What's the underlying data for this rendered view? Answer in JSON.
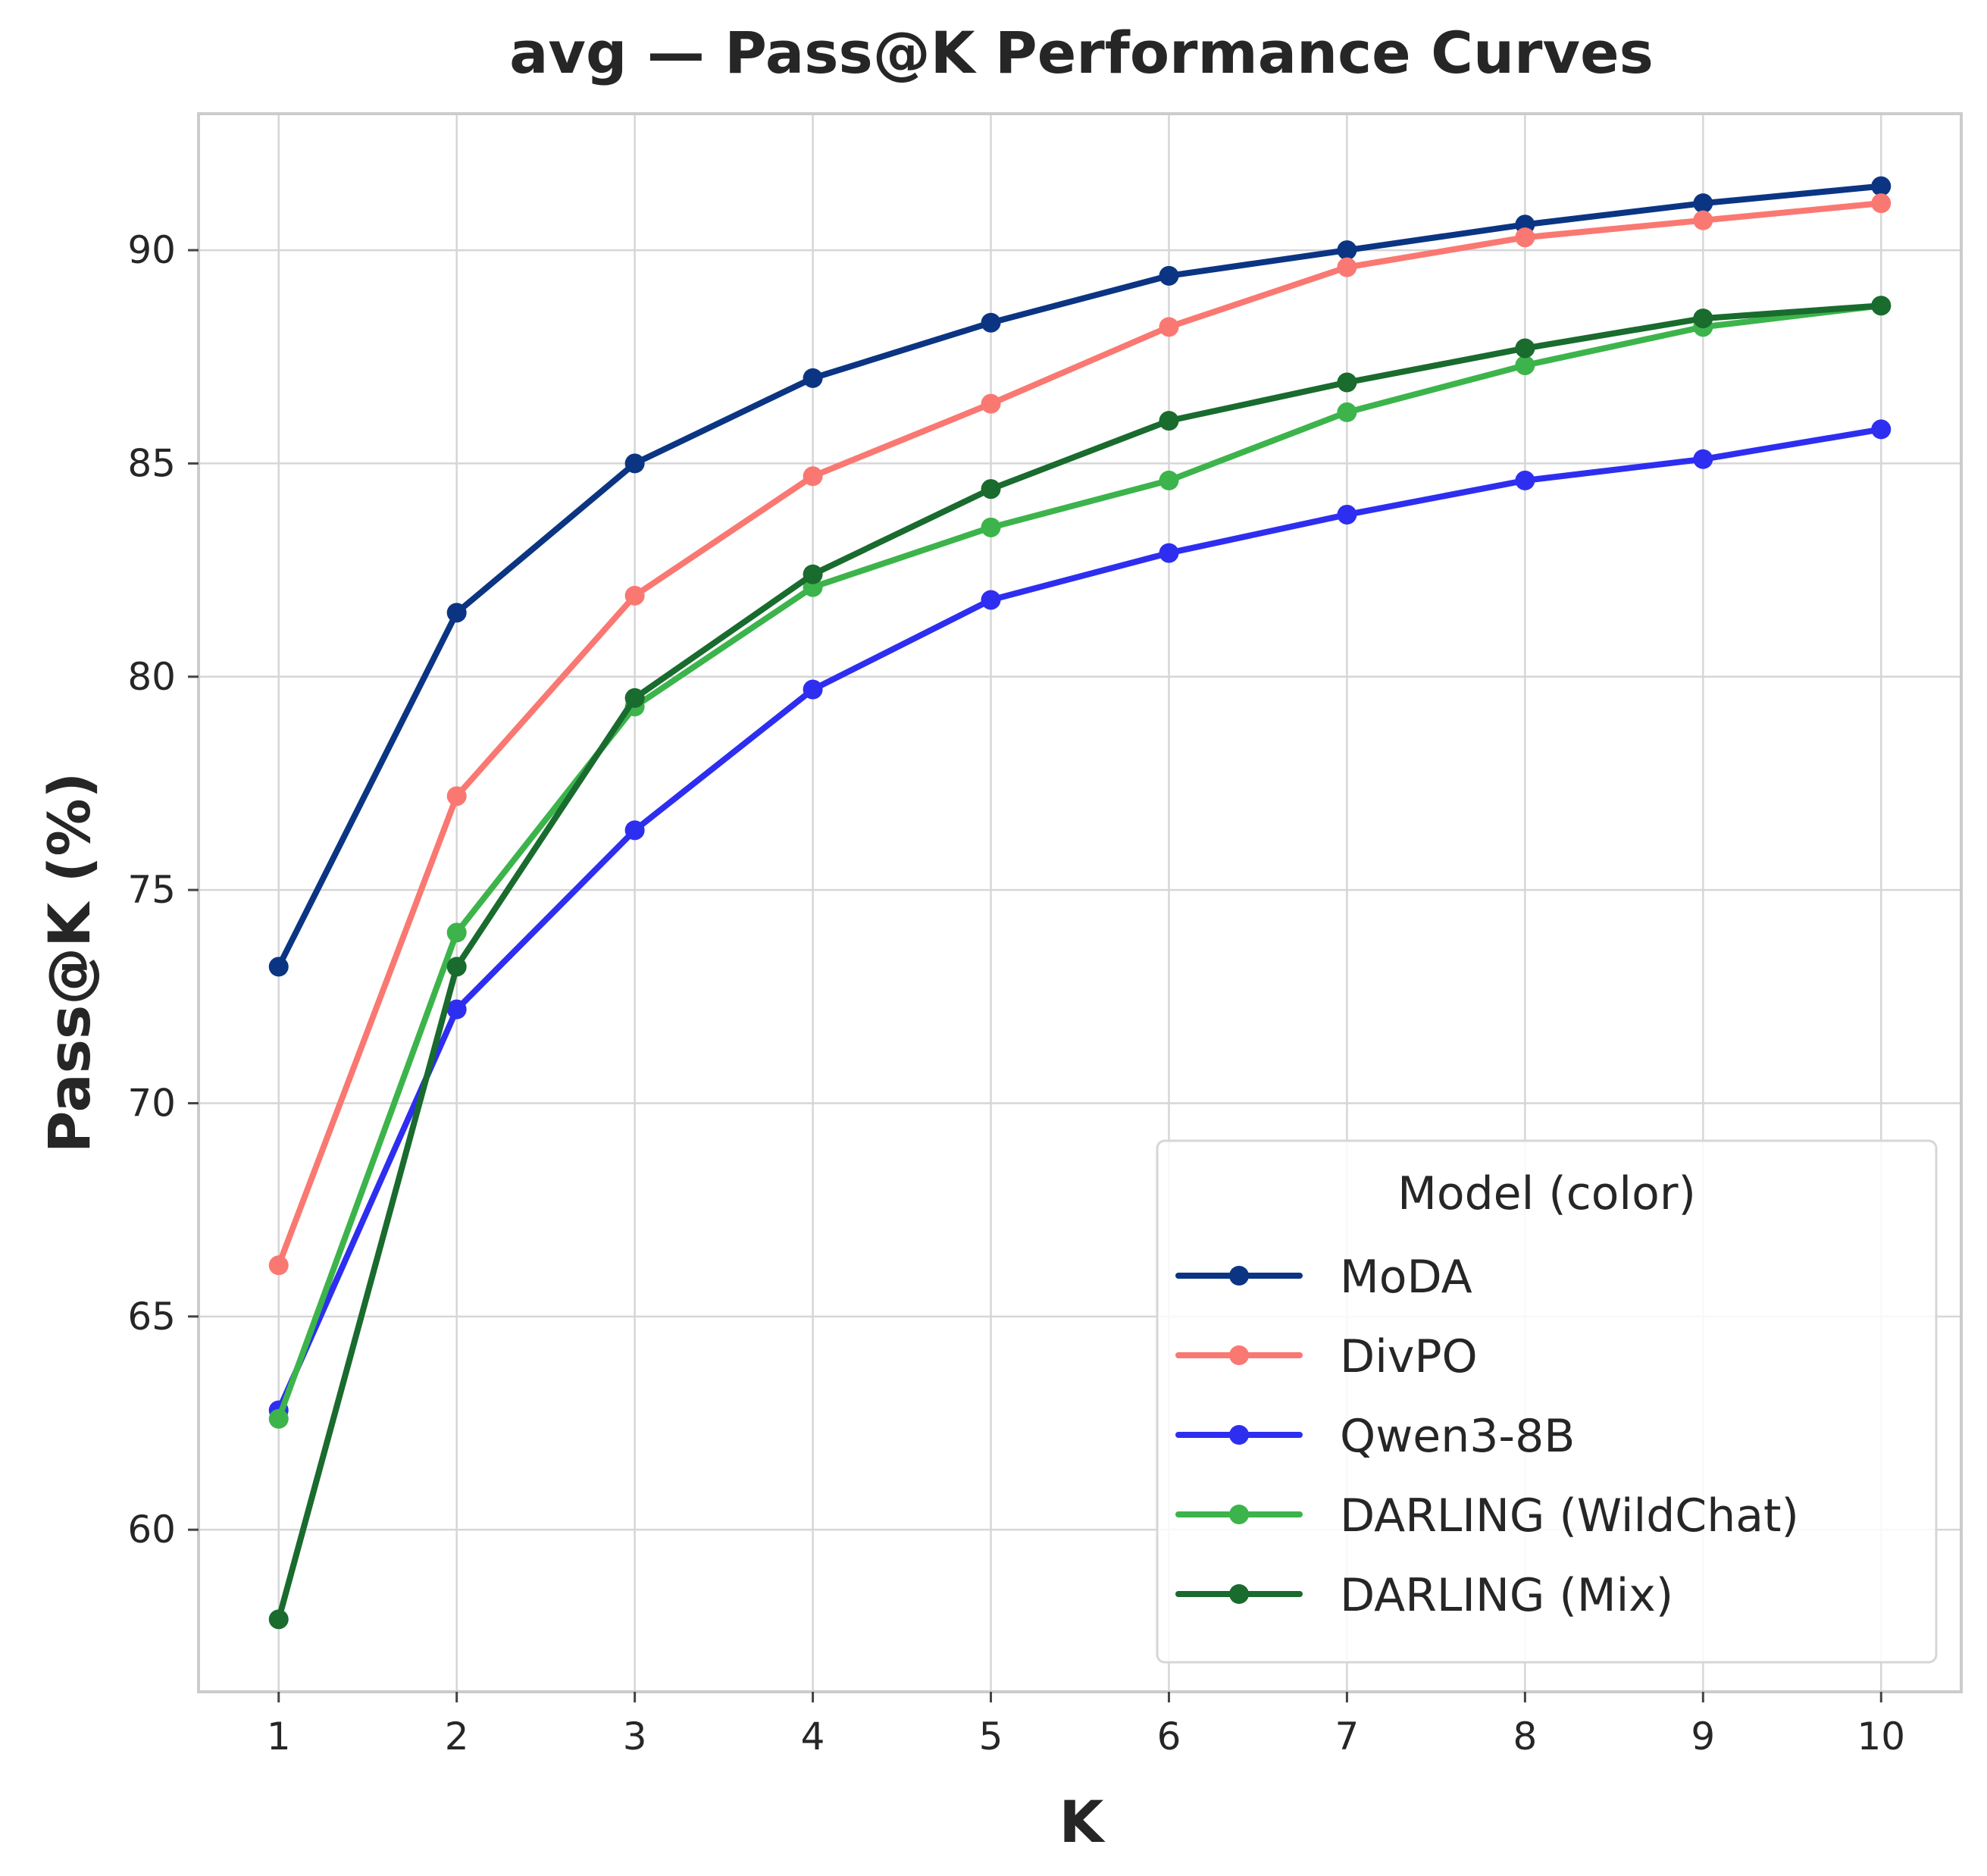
{
  "chart_data": {
    "type": "line",
    "title": "avg — Pass@K Performance Curves",
    "xlabel": "K",
    "ylabel": "Pass@K (%)",
    "x": [
      1,
      2,
      3,
      4,
      5,
      6,
      7,
      8,
      9,
      10
    ],
    "x_ticks": [
      "1",
      "2",
      "3",
      "4",
      "5",
      "6",
      "7",
      "8",
      "9",
      "10"
    ],
    "y_ticks": [
      "60",
      "65",
      "70",
      "75",
      "80",
      "85",
      "90"
    ],
    "y_tick_values": [
      60,
      65,
      70,
      75,
      80,
      85,
      90
    ],
    "xlim": [
      0.55,
      10.45
    ],
    "ylim": [
      56.2,
      93.2
    ],
    "grid": true,
    "legend": {
      "title": "Model (color)",
      "placement": "lower-right"
    },
    "series": [
      {
        "name": "MoDA",
        "color": "#0b3583",
        "values": [
          73.2,
          81.5,
          85.0,
          87.0,
          88.3,
          89.4,
          90.0,
          90.6,
          91.1,
          91.5
        ]
      },
      {
        "name": "DivPO",
        "color": "#fa7872",
        "values": [
          66.2,
          77.2,
          81.9,
          84.7,
          86.4,
          88.2,
          89.6,
          90.3,
          90.7,
          91.1
        ]
      },
      {
        "name": "Qwen3-8B",
        "color": "#2e2ef0",
        "values": [
          62.8,
          72.2,
          76.4,
          79.7,
          81.8,
          82.9,
          83.8,
          84.6,
          85.1,
          85.8
        ]
      },
      {
        "name": "DARLING (WildChat)",
        "color": "#3cb44b",
        "values": [
          62.6,
          74.0,
          79.3,
          82.1,
          83.5,
          84.6,
          86.2,
          87.3,
          88.2,
          88.7
        ]
      },
      {
        "name": "DARLING (Mix)",
        "color": "#196b2e",
        "values": [
          57.9,
          73.2,
          79.5,
          82.4,
          84.4,
          86.0,
          86.9,
          87.7,
          88.4,
          88.7
        ]
      }
    ]
  }
}
